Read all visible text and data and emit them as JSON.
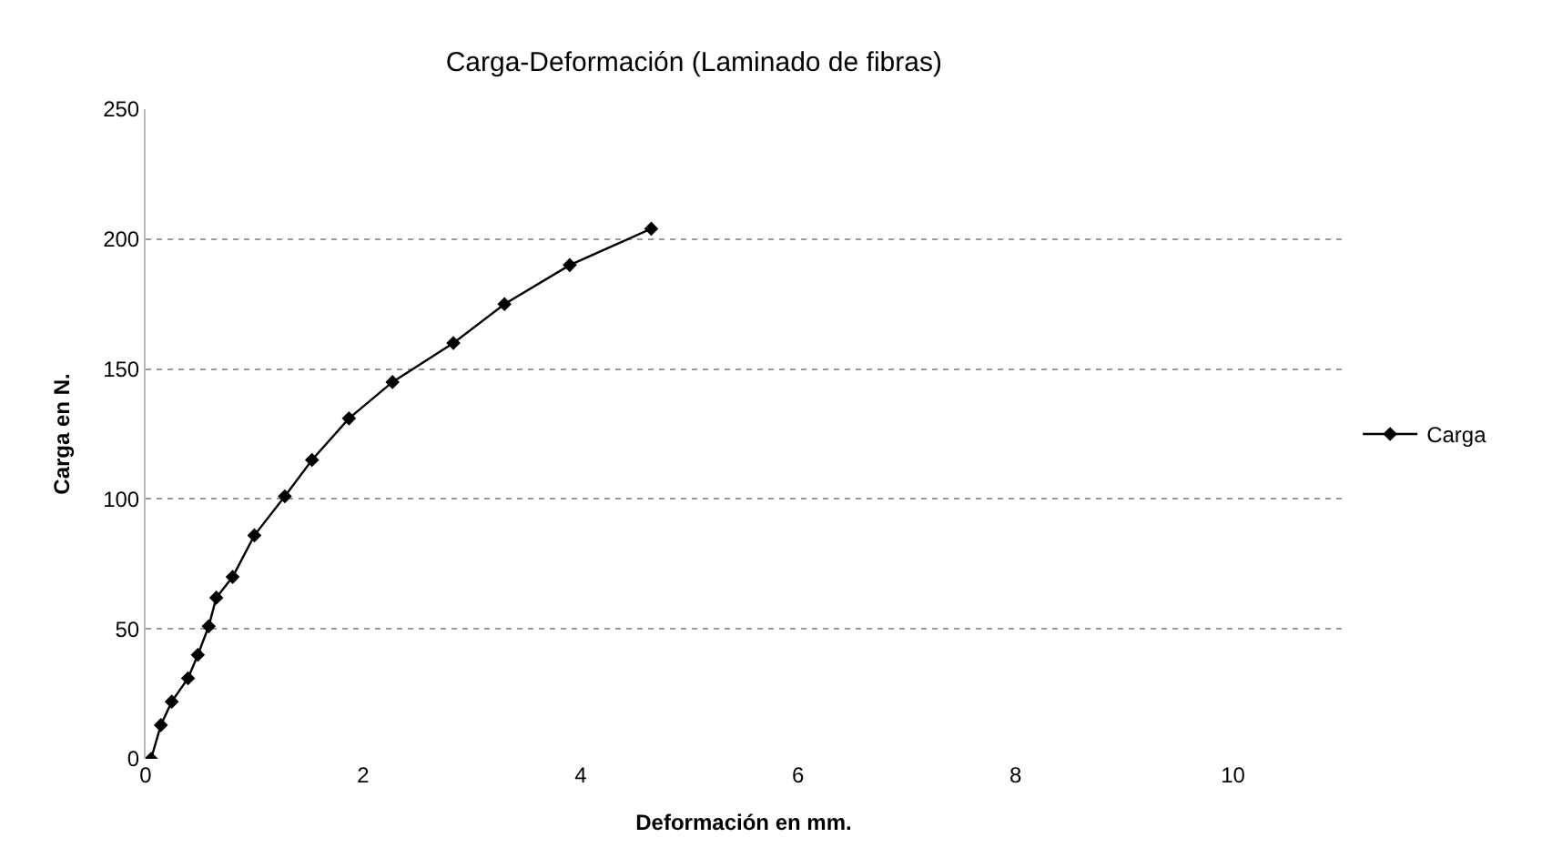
{
  "chart_data": {
    "type": "line",
    "title": "Carga-Deformación (Laminado de fibras)",
    "xlabel": "Deformación en mm.",
    "ylabel": "Carga en N.",
    "x": [
      0.05,
      0.14,
      0.24,
      0.39,
      0.48,
      0.58,
      0.65,
      0.8,
      1.0,
      1.28,
      1.53,
      1.87,
      2.27,
      2.83,
      3.3,
      3.9,
      4.65
    ],
    "series": [
      {
        "name": "Carga",
        "color": "#000000",
        "values": [
          0,
          13,
          22,
          31,
          40,
          51,
          62,
          70,
          86,
          101,
          115,
          131,
          145,
          160,
          175,
          190,
          204
        ]
      }
    ],
    "xlim": [
      0,
      11
    ],
    "xticks": [
      0,
      2,
      4,
      6,
      8,
      10
    ],
    "ylim": [
      0,
      250
    ],
    "yticks": [
      0,
      50,
      100,
      150,
      200,
      250
    ],
    "grid": "y",
    "legend": "right",
    "marker": "diamond",
    "line_style": "solid"
  }
}
